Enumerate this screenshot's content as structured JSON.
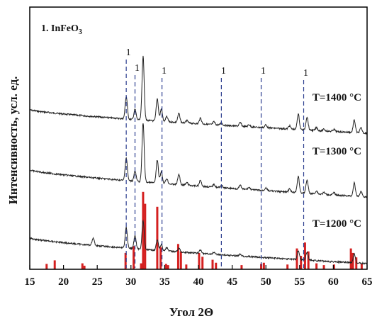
{
  "chart_data": {
    "type": "line",
    "panel_label": {
      "prefix": "1. InFeO",
      "sub": "3"
    },
    "xlabel": "Угол 2Θ",
    "ylabel": "Интенсивность, усл. ед.",
    "xlim": [
      15,
      65
    ],
    "x_ticks": [
      15,
      20,
      25,
      30,
      35,
      40,
      45,
      50,
      55,
      60,
      65
    ],
    "grid": false,
    "colors": {
      "trace": "#222222",
      "reference": "#d42020",
      "marker_line": "#2b3d8f",
      "axis": "#000000"
    },
    "series": [
      {
        "name": "T=1400 °C",
        "baseline_start": 155,
        "baseline_end": 30,
        "peaks": [
          [
            29.3,
            55
          ],
          [
            30.6,
            25
          ],
          [
            31.8,
            155
          ],
          [
            33.9,
            55
          ],
          [
            34.5,
            30
          ],
          [
            35.3,
            12
          ],
          [
            37.1,
            22
          ],
          [
            38.3,
            6
          ],
          [
            40.3,
            14
          ],
          [
            42.3,
            7
          ],
          [
            43.4,
            5
          ],
          [
            46.2,
            9
          ],
          [
            47.5,
            5
          ],
          [
            50.0,
            7
          ],
          [
            53.5,
            8
          ],
          [
            54.8,
            38
          ],
          [
            56.1,
            32
          ],
          [
            57.5,
            7
          ],
          [
            58.6,
            4
          ],
          [
            60.1,
            5
          ],
          [
            63.1,
            30
          ],
          [
            64.1,
            12
          ]
        ]
      },
      {
        "name": "T=1300 °C",
        "baseline_start": 125,
        "baseline_end": 30,
        "peaks": [
          [
            29.3,
            62
          ],
          [
            30.6,
            28
          ],
          [
            31.8,
            160
          ],
          [
            33.9,
            62
          ],
          [
            34.5,
            32
          ],
          [
            35.3,
            14
          ],
          [
            37.1,
            28
          ],
          [
            38.3,
            7
          ],
          [
            40.3,
            16
          ],
          [
            42.3,
            8
          ],
          [
            43.4,
            6
          ],
          [
            46.2,
            10
          ],
          [
            47.5,
            6
          ],
          [
            50.0,
            8
          ],
          [
            53.5,
            9
          ],
          [
            54.8,
            44
          ],
          [
            56.1,
            36
          ],
          [
            57.5,
            8
          ],
          [
            58.6,
            5
          ],
          [
            60.1,
            6
          ],
          [
            63.1,
            36
          ],
          [
            64.1,
            14
          ]
        ]
      },
      {
        "name": "T=1200 °C",
        "baseline_start": 125,
        "baseline_end": 30,
        "peaks": [
          [
            24.4,
            18
          ],
          [
            29.3,
            50
          ],
          [
            30.6,
            32
          ],
          [
            31.8,
            70
          ],
          [
            33.9,
            25
          ],
          [
            34.5,
            15
          ],
          [
            35.3,
            8
          ],
          [
            37.1,
            10
          ],
          [
            40.3,
            8
          ],
          [
            42.3,
            5
          ],
          [
            46.2,
            5
          ],
          [
            54.8,
            22
          ],
          [
            56.1,
            20
          ],
          [
            63.1,
            22
          ]
        ]
      }
    ],
    "reference_pattern": [
      [
        17.5,
        18
      ],
      [
        18.7,
        30
      ],
      [
        22.8,
        20
      ],
      [
        23.1,
        12
      ],
      [
        29.2,
        55
      ],
      [
        30.4,
        78
      ],
      [
        31.5,
        20
      ],
      [
        31.8,
        260
      ],
      [
        32.1,
        220
      ],
      [
        33.9,
        210
      ],
      [
        34.4,
        75
      ],
      [
        35.2,
        18
      ],
      [
        35.5,
        14
      ],
      [
        37.0,
        85
      ],
      [
        37.4,
        60
      ],
      [
        38.2,
        16
      ],
      [
        40.1,
        55
      ],
      [
        40.6,
        42
      ],
      [
        42.1,
        32
      ],
      [
        42.6,
        22
      ],
      [
        46.4,
        14
      ],
      [
        49.3,
        18
      ],
      [
        49.7,
        22
      ],
      [
        53.2,
        16
      ],
      [
        54.6,
        70
      ],
      [
        55.2,
        45
      ],
      [
        55.8,
        90
      ],
      [
        56.3,
        60
      ],
      [
        57.5,
        20
      ],
      [
        58.6,
        14
      ],
      [
        60.1,
        16
      ],
      [
        62.6,
        70
      ],
      [
        62.9,
        55
      ],
      [
        63.4,
        40
      ],
      [
        64.2,
        18
      ]
    ],
    "marker_lines": [
      29.3,
      30.6,
      34.6,
      43.4,
      49.3,
      55.6
    ],
    "marker_label": "1"
  }
}
